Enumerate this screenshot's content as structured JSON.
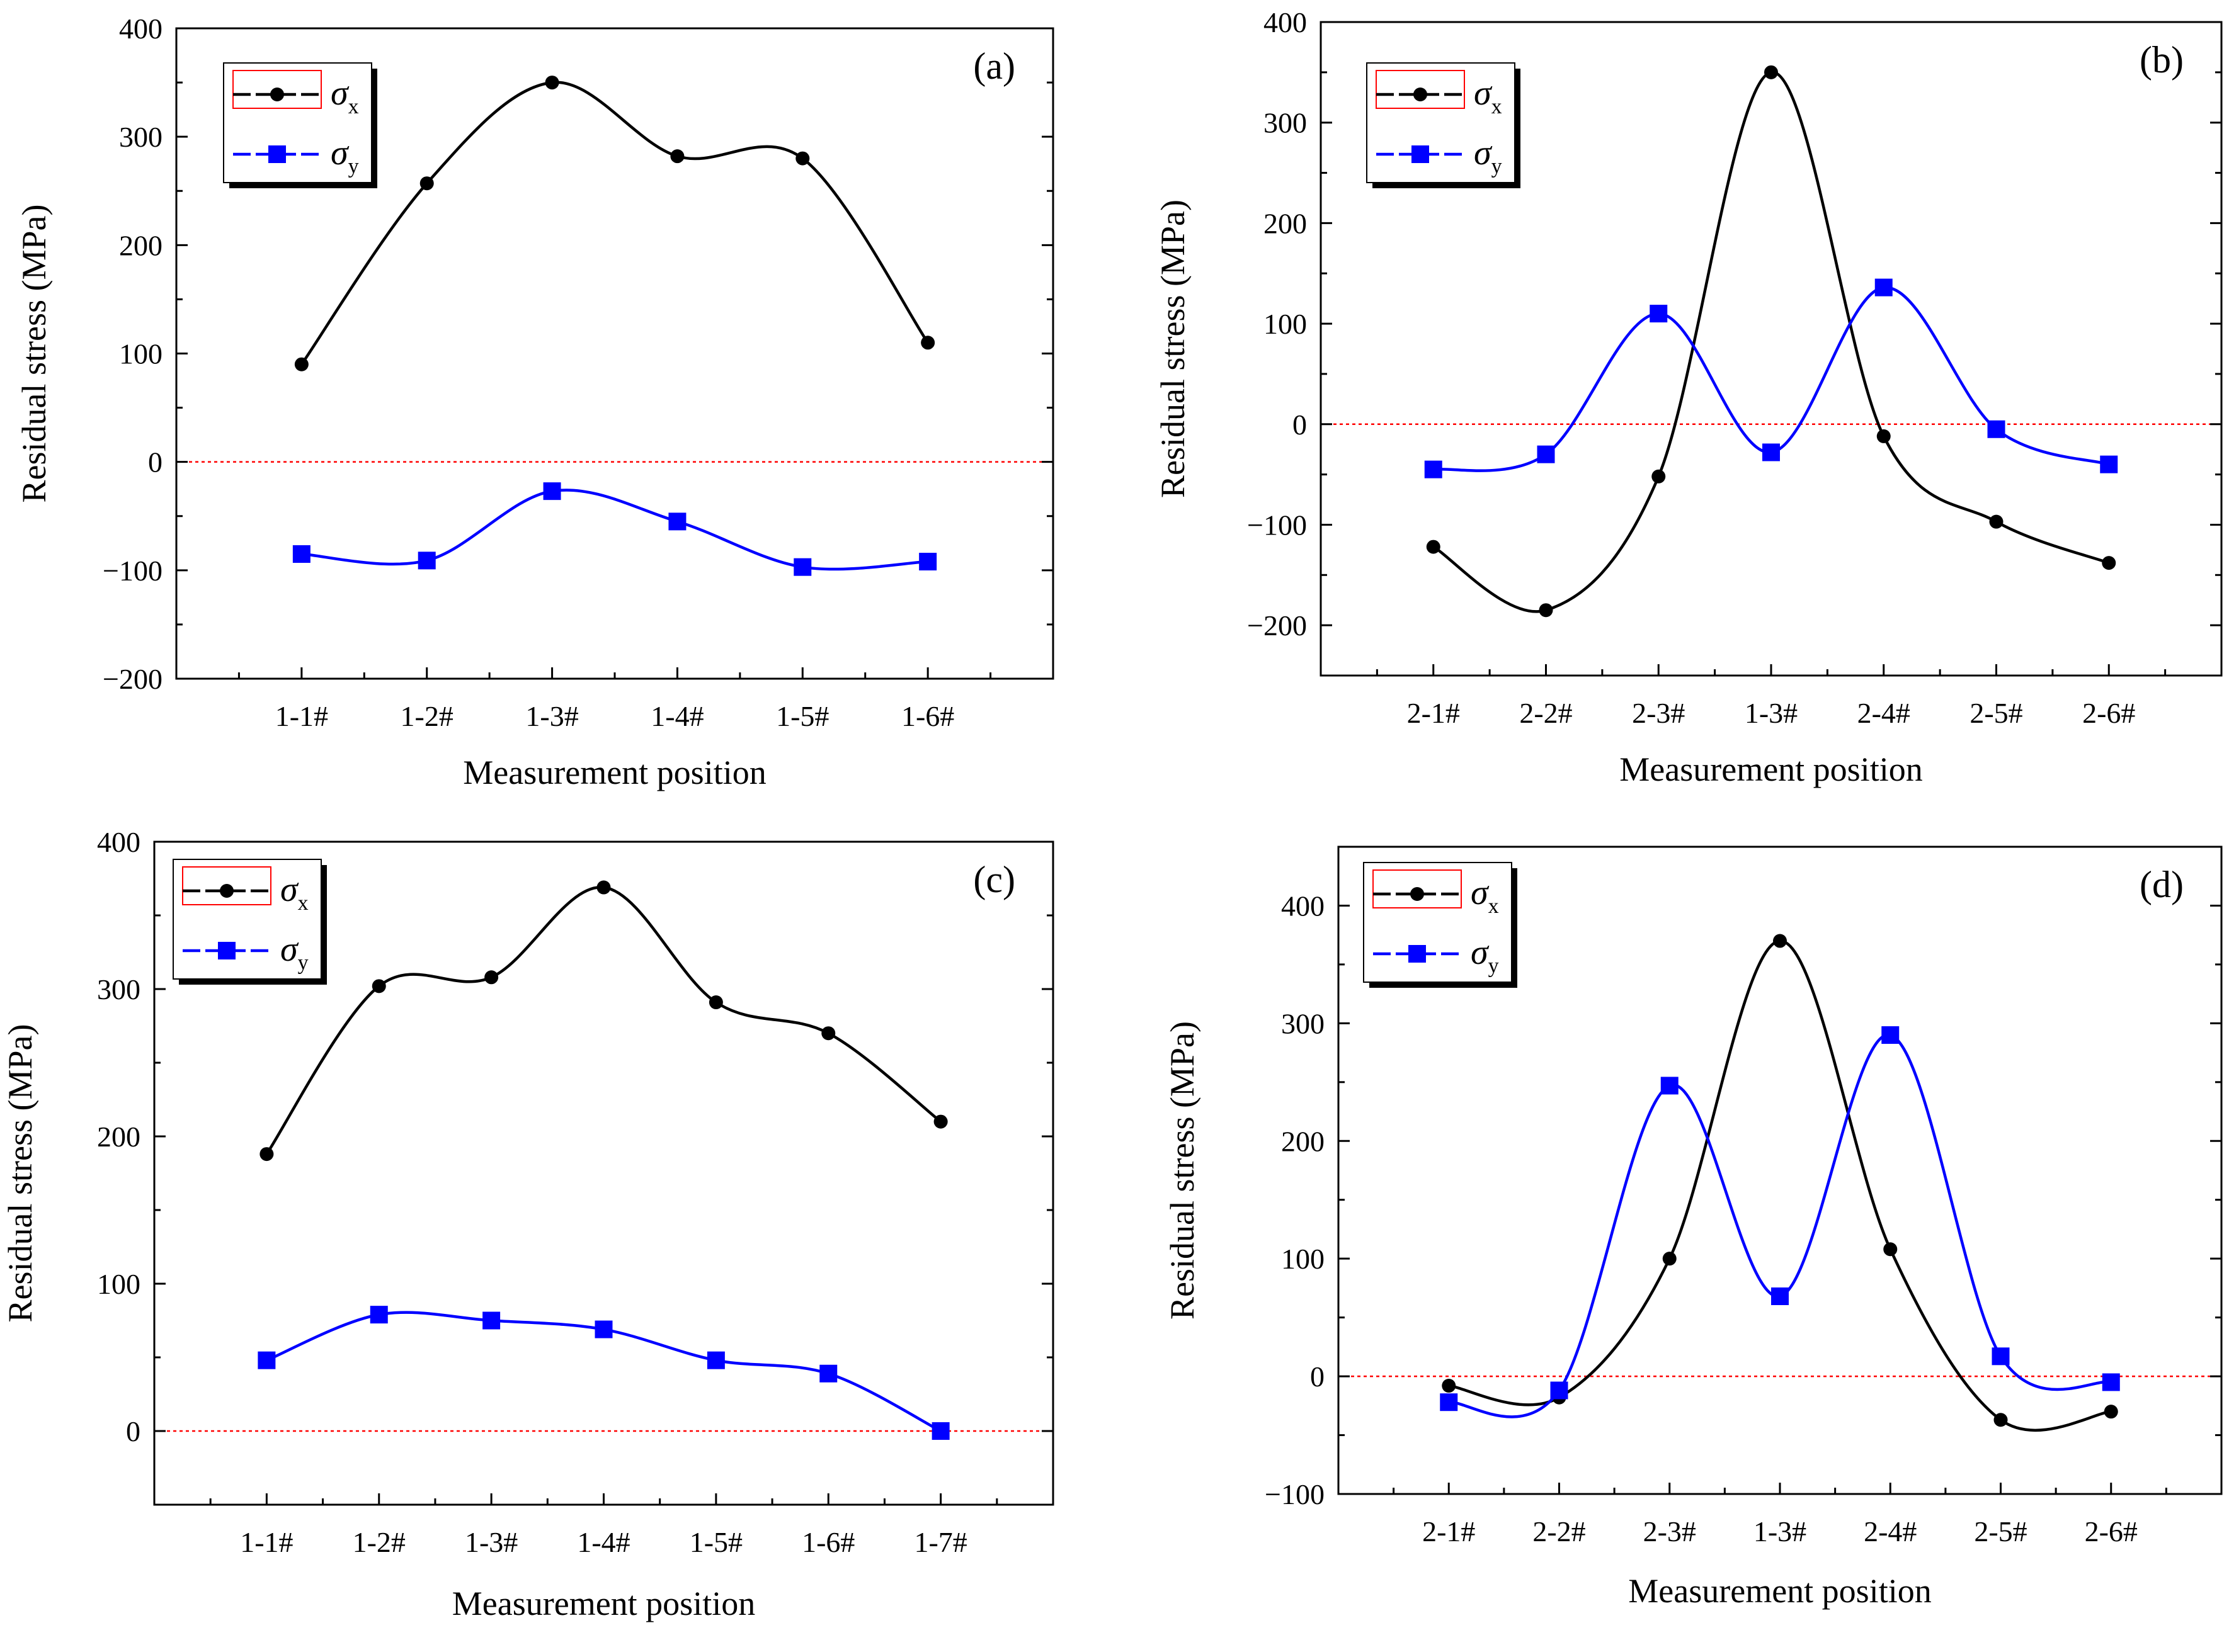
{
  "figure": {
    "colors": {
      "sigma_x": "#000000",
      "sigma_y": "#0000ff",
      "zero_line": "#ff0000",
      "axes": "#000000"
    },
    "legend_symbol": "σ"
  },
  "chart_data": [
    {
      "type": "line",
      "panel_label": "(a)",
      "xlabel": "Measurement position",
      "ylabel": "Residual stress (MPa)",
      "categories": [
        "1-1#",
        "1-2#",
        "1-3#",
        "1-4#",
        "1-5#",
        "1-6#"
      ],
      "ylim": [
        -200,
        400
      ],
      "yticks": [
        -200,
        -100,
        0,
        100,
        200,
        300,
        400
      ],
      "series": [
        {
          "name": "σx",
          "symbol": "σ",
          "subscript": "x",
          "marker": "circle",
          "values": [
            90,
            257,
            350,
            282,
            280,
            110
          ]
        },
        {
          "name": "σy",
          "symbol": "σ",
          "subscript": "y",
          "marker": "square",
          "values": [
            -85,
            -91,
            -27,
            -55,
            -97,
            -92
          ]
        }
      ]
    },
    {
      "type": "line",
      "panel_label": "(b)",
      "xlabel": "Measurement position",
      "ylabel": "Residual stress (MPa)",
      "categories": [
        "2-1#",
        "2-2#",
        "2-3#",
        "1-3#",
        "2-4#",
        "2-5#",
        "2-6#"
      ],
      "ylim": [
        -250,
        400
      ],
      "yticks": [
        -200,
        -100,
        0,
        100,
        200,
        300,
        400
      ],
      "series": [
        {
          "name": "σx",
          "symbol": "σ",
          "subscript": "x",
          "marker": "circle",
          "values": [
            -122,
            -185,
            -52,
            350,
            -12,
            -97,
            -138
          ]
        },
        {
          "name": "σy",
          "symbol": "σ",
          "subscript": "y",
          "marker": "square",
          "values": [
            -45,
            -30,
            110,
            -28,
            136,
            -5,
            -40
          ]
        }
      ]
    },
    {
      "type": "line",
      "panel_label": "(c)",
      "xlabel": "Measurement position",
      "ylabel": "Residual stress (MPa)",
      "categories": [
        "1-1#",
        "1-2#",
        "1-3#",
        "1-4#",
        "1-5#",
        "1-6#",
        "1-7#"
      ],
      "ylim": [
        -50,
        400
      ],
      "yticks": [
        0,
        100,
        200,
        300,
        400
      ],
      "series": [
        {
          "name": "σx",
          "symbol": "σ",
          "subscript": "x",
          "marker": "circle",
          "values": [
            188,
            302,
            308,
            369,
            291,
            270,
            210
          ]
        },
        {
          "name": "σy",
          "symbol": "σ",
          "subscript": "y",
          "marker": "square",
          "values": [
            48,
            79,
            75,
            69,
            48,
            39,
            0
          ]
        }
      ]
    },
    {
      "type": "line",
      "panel_label": "(d)",
      "xlabel": "Measurement position",
      "ylabel": "Residual stress (MPa)",
      "categories": [
        "2-1#",
        "2-2#",
        "2-3#",
        "1-3#",
        "2-4#",
        "2-5#",
        "2-6#"
      ],
      "ylim": [
        -100,
        450
      ],
      "yticks": [
        -100,
        0,
        100,
        200,
        300,
        400
      ],
      "series": [
        {
          "name": "σx",
          "symbol": "σ",
          "subscript": "x",
          "marker": "circle",
          "values": [
            -8,
            -18,
            100,
            370,
            108,
            -37,
            -30
          ]
        },
        {
          "name": "σy",
          "symbol": "σ",
          "subscript": "y",
          "marker": "square",
          "values": [
            -22,
            -12,
            247,
            68,
            290,
            17,
            -5
          ]
        }
      ]
    }
  ]
}
